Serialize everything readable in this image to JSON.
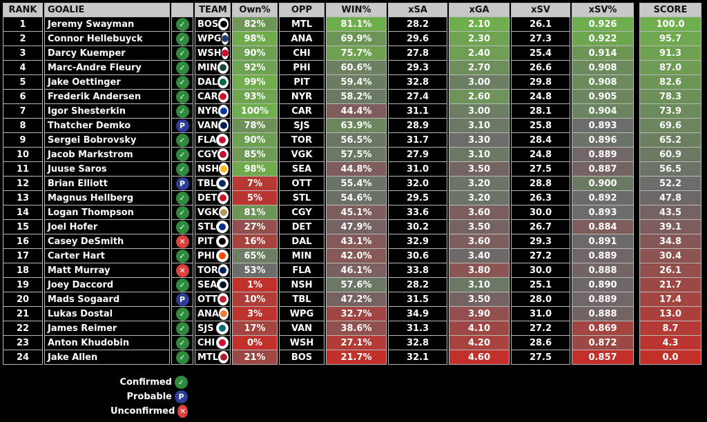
{
  "headers": {
    "rank": "RANK",
    "goalie": "GOALIE",
    "team": "TEAM",
    "own": "Own%",
    "opp": "OPP",
    "win": "WIN%",
    "xsa": "xSA",
    "xga": "xGA",
    "xsv": "xSV",
    "xsvp": "xSV%",
    "score": "SCORE"
  },
  "colors": {
    "green": "#6fae4c",
    "gray": "#6a6a6a",
    "red": "#c2302a",
    "team": {
      "BOS": "#000",
      "WPG": "#1b3c6e",
      "WSH": "#c8102e",
      "MIN": "#154734",
      "DAL": "#006847",
      "CAR": "#ce1126",
      "NYR": "#0038a8",
      "VAN": "#00205b",
      "FLA": "#c8102e",
      "CGY": "#c8102e",
      "NSH": "#ffb81c",
      "TBL": "#002868",
      "DET": "#ce1126",
      "VGK": "#b4975a",
      "STL": "#002f87",
      "PIT": "#000",
      "PHI": "#f74902",
      "TOR": "#00205b",
      "SEA": "#001628",
      "OTT": "#c52032",
      "ANA": "#f47a38",
      "SJS": "#006d75",
      "CHI": "#cf0a2c",
      "MTL": "#af1e2d"
    }
  },
  "status_symbols": {
    "confirmed": "✓",
    "probable": "P",
    "unconfirmed": "✕"
  },
  "rows": [
    {
      "rank": "1",
      "goalie": "Jeremy Swayman",
      "status": "confirmed",
      "team": "BOS",
      "own": "82%",
      "opp": "MTL",
      "win": "81.1%",
      "xsa": "28.2",
      "xga": "2.10",
      "xsv": "26.1",
      "xsvp": "0.926",
      "score": "100.0"
    },
    {
      "rank": "2",
      "goalie": "Connor Hellebuyck",
      "status": "confirmed",
      "team": "WPG",
      "own": "98%",
      "opp": "ANA",
      "win": "69.9%",
      "xsa": "29.6",
      "xga": "2.30",
      "xsv": "27.3",
      "xsvp": "0.922",
      "score": "95.7"
    },
    {
      "rank": "3",
      "goalie": "Darcy Kuemper",
      "status": "confirmed",
      "team": "WSH",
      "own": "90%",
      "opp": "CHI",
      "win": "75.7%",
      "xsa": "27.8",
      "xga": "2.40",
      "xsv": "25.4",
      "xsvp": "0.914",
      "score": "91.3"
    },
    {
      "rank": "4",
      "goalie": "Marc-Andre Fleury",
      "status": "confirmed",
      "team": "MIN",
      "own": "92%",
      "opp": "PHI",
      "win": "60.6%",
      "xsa": "29.3",
      "xga": "2.70",
      "xsv": "26.6",
      "xsvp": "0.908",
      "score": "87.0"
    },
    {
      "rank": "5",
      "goalie": "Jake Oettinger",
      "status": "confirmed",
      "team": "DAL",
      "own": "99%",
      "opp": "PIT",
      "win": "59.4%",
      "xsa": "32.8",
      "xga": "3.00",
      "xsv": "29.8",
      "xsvp": "0.908",
      "score": "82.6"
    },
    {
      "rank": "6",
      "goalie": "Frederik Andersen",
      "status": "confirmed",
      "team": "CAR",
      "own": "93%",
      "opp": "NYR",
      "win": "58.2%",
      "xsa": "27.4",
      "xga": "2.60",
      "xsv": "24.8",
      "xsvp": "0.905",
      "score": "78.3"
    },
    {
      "rank": "7",
      "goalie": "Igor Shesterkin",
      "status": "confirmed",
      "team": "NYR",
      "own": "100%",
      "opp": "CAR",
      "win": "44.4%",
      "xsa": "31.1",
      "xga": "3.00",
      "xsv": "28.1",
      "xsvp": "0.904",
      "score": "73.9"
    },
    {
      "rank": "8",
      "goalie": "Thatcher Demko",
      "status": "probable",
      "team": "VAN",
      "own": "78%",
      "opp": "SJS",
      "win": "63.9%",
      "xsa": "28.9",
      "xga": "3.10",
      "xsv": "25.8",
      "xsvp": "0.893",
      "score": "69.6"
    },
    {
      "rank": "9",
      "goalie": "Sergei Bobrovsky",
      "status": "confirmed",
      "team": "FLA",
      "own": "90%",
      "opp": "TOR",
      "win": "56.5%",
      "xsa": "31.7",
      "xga": "3.30",
      "xsv": "28.4",
      "xsvp": "0.896",
      "score": "65.2"
    },
    {
      "rank": "10",
      "goalie": "Jacob Markstrom",
      "status": "confirmed",
      "team": "CGY",
      "own": "85%",
      "opp": "VGK",
      "win": "57.5%",
      "xsa": "27.9",
      "xga": "3.10",
      "xsv": "24.8",
      "xsvp": "0.889",
      "score": "60.9"
    },
    {
      "rank": "11",
      "goalie": "Juuse Saros",
      "status": "confirmed",
      "team": "NSH",
      "own": "98%",
      "opp": "SEA",
      "win": "44.8%",
      "xsa": "31.0",
      "xga": "3.50",
      "xsv": "27.5",
      "xsvp": "0.887",
      "score": "56.5"
    },
    {
      "rank": "12",
      "goalie": "Brian Elliott",
      "status": "probable",
      "team": "TBL",
      "own": "7%",
      "opp": "OTT",
      "win": "55.4%",
      "xsa": "32.0",
      "xga": "3.20",
      "xsv": "28.8",
      "xsvp": "0.900",
      "score": "52.2"
    },
    {
      "rank": "13",
      "goalie": "Magnus Hellberg",
      "status": "confirmed",
      "team": "DET",
      "own": "5%",
      "opp": "STL",
      "win": "54.6%",
      "xsa": "29.5",
      "xga": "3.20",
      "xsv": "26.3",
      "xsvp": "0.892",
      "score": "47.8"
    },
    {
      "rank": "14",
      "goalie": "Logan Thompson",
      "status": "confirmed",
      "team": "VGK",
      "own": "81%",
      "opp": "CGY",
      "win": "45.1%",
      "xsa": "33.6",
      "xga": "3.60",
      "xsv": "30.0",
      "xsvp": "0.893",
      "score": "43.5"
    },
    {
      "rank": "15",
      "goalie": "Joel Hofer",
      "status": "confirmed",
      "team": "STL",
      "own": "27%",
      "opp": "DET",
      "win": "47.9%",
      "xsa": "30.2",
      "xga": "3.50",
      "xsv": "26.7",
      "xsvp": "0.884",
      "score": "39.1"
    },
    {
      "rank": "16",
      "goalie": "Casey DeSmith",
      "status": "unconfirmed",
      "team": "PIT",
      "own": "16%",
      "opp": "DAL",
      "win": "43.1%",
      "xsa": "32.9",
      "xga": "3.60",
      "xsv": "29.3",
      "xsvp": "0.891",
      "score": "34.8"
    },
    {
      "rank": "17",
      "goalie": "Carter Hart",
      "status": "confirmed",
      "team": "PHI",
      "own": "65%",
      "opp": "MIN",
      "win": "42.0%",
      "xsa": "30.6",
      "xga": "3.40",
      "xsv": "27.2",
      "xsvp": "0.889",
      "score": "30.4"
    },
    {
      "rank": "18",
      "goalie": "Matt Murray",
      "status": "unconfirmed",
      "team": "TOR",
      "own": "53%",
      "opp": "FLA",
      "win": "46.1%",
      "xsa": "33.8",
      "xga": "3.80",
      "xsv": "30.0",
      "xsvp": "0.888",
      "score": "26.1"
    },
    {
      "rank": "19",
      "goalie": "Joey Daccord",
      "status": "confirmed",
      "team": "SEA",
      "own": "1%",
      "opp": "NSH",
      "win": "57.6%",
      "xsa": "28.2",
      "xga": "3.10",
      "xsv": "25.1",
      "xsvp": "0.890",
      "score": "21.7"
    },
    {
      "rank": "20",
      "goalie": "Mads Sogaard",
      "status": "probable",
      "team": "OTT",
      "own": "10%",
      "opp": "TBL",
      "win": "47.2%",
      "xsa": "31.5",
      "xga": "3.50",
      "xsv": "28.0",
      "xsvp": "0.889",
      "score": "17.4"
    },
    {
      "rank": "21",
      "goalie": "Lukas Dostal",
      "status": "confirmed",
      "team": "ANA",
      "own": "3%",
      "opp": "WPG",
      "win": "32.7%",
      "xsa": "34.9",
      "xga": "3.90",
      "xsv": "31.0",
      "xsvp": "0.888",
      "score": "13.0"
    },
    {
      "rank": "22",
      "goalie": "James Reimer",
      "status": "confirmed",
      "team": "SJS",
      "own": "17%",
      "opp": "VAN",
      "win": "38.6%",
      "xsa": "31.3",
      "xga": "4.10",
      "xsv": "27.2",
      "xsvp": "0.869",
      "score": "8.7"
    },
    {
      "rank": "23",
      "goalie": "Anton Khudobin",
      "status": "confirmed",
      "team": "CHI",
      "own": "0%",
      "opp": "WSH",
      "win": "27.1%",
      "xsa": "32.8",
      "xga": "4.20",
      "xsv": "28.6",
      "xsvp": "0.872",
      "score": "4.3"
    },
    {
      "rank": "24",
      "goalie": "Jake Allen",
      "status": "confirmed",
      "team": "MTL",
      "own": "21%",
      "opp": "BOS",
      "win": "21.7%",
      "xsa": "32.1",
      "xga": "4.60",
      "xsv": "27.5",
      "xsvp": "0.857",
      "score": "0.0"
    }
  ],
  "legend": [
    {
      "label": "Confirmed",
      "status": "confirmed"
    },
    {
      "label": "Probable",
      "status": "probable"
    },
    {
      "label": "Unconfirmed",
      "status": "unconfirmed"
    }
  ]
}
